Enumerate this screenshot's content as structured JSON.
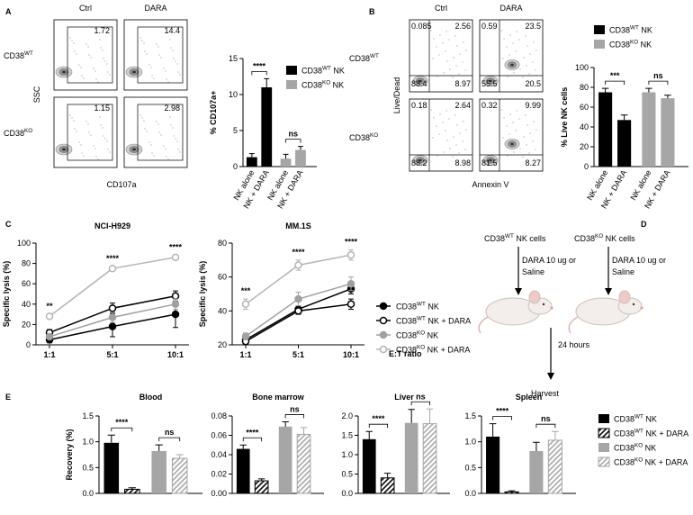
{
  "panel_labels": [
    "A",
    "B",
    "C",
    "D",
    "E"
  ],
  "flow_a": {
    "columns": [
      "Ctrl",
      "DARA"
    ],
    "rows": [
      [
        "CD38",
        "WT"
      ],
      [
        "CD38",
        "KO"
      ]
    ],
    "y_label": "SSC",
    "x_label": "CD107a",
    "gates": [
      [
        1.72,
        14.4
      ],
      [
        1.15,
        2.98
      ]
    ]
  },
  "flow_b": {
    "columns": [
      "Ctrl",
      "DARA"
    ],
    "rows": [
      [
        "CD38",
        "WT"
      ],
      [
        "CD38",
        "KO"
      ]
    ],
    "y_label": "Live/Dead",
    "x_label": "Annexin V",
    "quadrants": [
      [
        [
          0.085,
          2.56,
          88.4,
          8.97
        ],
        [
          0.59,
          23.5,
          55.5,
          20.5
        ]
      ],
      [
        [
          0.18,
          2.64,
          88.2,
          8.98
        ],
        [
          0.32,
          9.99,
          81.5,
          8.27
        ]
      ]
    ]
  },
  "chart_data": [
    {
      "type": "bar",
      "y_label": "% CD107a+",
      "categories": [
        "NK alone",
        "NK + DARA",
        "NK alone",
        "NK + DARA"
      ],
      "ylim": [
        0,
        15
      ],
      "yticks": [
        0,
        5,
        10,
        15
      ],
      "series": [
        {
          "name": [
            "CD38",
            "WT",
            " NK"
          ],
          "color": "#000000",
          "values": [
            1.3,
            11,
            null,
            null
          ],
          "errors": [
            0.5,
            1.2,
            null,
            null
          ]
        },
        {
          "name": [
            "CD38",
            "KO",
            " NK"
          ],
          "color": "#a6a6a6",
          "values": [
            null,
            null,
            1.1,
            2.3
          ],
          "errors": [
            null,
            null,
            0.6,
            0.5
          ]
        }
      ],
      "annotations": [
        "****",
        "ns"
      ]
    },
    {
      "type": "bar",
      "y_label": "% Live NK cells",
      "categories": [
        "NK alone",
        "NK + DARA",
        "NK alone",
        "NK + DARA"
      ],
      "ylim": [
        0,
        100
      ],
      "yticks": [
        0,
        20,
        40,
        60,
        80,
        100
      ],
      "series": [
        {
          "name": [
            "CD38",
            "WT",
            " NK"
          ],
          "color": "#000000",
          "values": [
            75,
            47,
            null,
            null
          ],
          "errors": [
            4,
            5,
            null,
            null
          ]
        },
        {
          "name": [
            "CD38",
            "KO",
            " NK"
          ],
          "color": "#a6a6a6",
          "values": [
            null,
            null,
            75,
            69
          ],
          "errors": [
            null,
            null,
            4,
            3
          ]
        }
      ],
      "annotations": [
        "***",
        "ns"
      ]
    },
    {
      "type": "line",
      "title": "NCI-H929",
      "y_label": "Specific lysis (%)",
      "categories": [
        "1:1",
        "5:1",
        "10:1"
      ],
      "ylim": [
        0,
        100
      ],
      "yticks": [
        0,
        20,
        40,
        60,
        80,
        100
      ],
      "series": [
        {
          "color": "#000000",
          "marker": "filled",
          "values": [
            5,
            18,
            30
          ],
          "errors": [
            3,
            10,
            13
          ]
        },
        {
          "color": "#000000",
          "marker": "open",
          "values": [
            12,
            36,
            48
          ],
          "errors": [
            3,
            5,
            5
          ]
        },
        {
          "color": "#a0a0a0",
          "marker": "filled",
          "values": [
            8,
            27,
            40
          ],
          "errors": [
            2,
            5,
            5
          ]
        },
        {
          "color": "#b4b4b4",
          "marker": "open",
          "values": [
            28,
            75,
            86
          ],
          "errors": [
            2,
            2,
            2
          ]
        }
      ],
      "annotations": [
        "**",
        "****",
        "****"
      ]
    },
    {
      "type": "line",
      "title": "MM.1S",
      "y_label": "Specific lysis (%)",
      "x_label": "E:T ratio",
      "categories": [
        "1:1",
        "5:1",
        "10:1"
      ],
      "ylim": [
        20,
        80
      ],
      "yticks": [
        20,
        40,
        60,
        80
      ],
      "series": [
        {
          "name": [
            "CD38",
            "WT",
            " NK"
          ],
          "color": "#000000",
          "marker": "filled",
          "values": [
            23,
            41,
            53
          ],
          "errors": [
            2,
            2,
            3
          ]
        },
        {
          "name": [
            "CD38",
            "WT",
            " NK + DARA"
          ],
          "color": "#000000",
          "marker": "open",
          "values": [
            22,
            40,
            44
          ],
          "errors": [
            2,
            2,
            3
          ]
        },
        {
          "name": [
            "CD38",
            "KO",
            " NK"
          ],
          "color": "#a0a0a0",
          "marker": "filled",
          "values": [
            25,
            47,
            56
          ],
          "errors": [
            2,
            4,
            4
          ]
        },
        {
          "name": [
            "CD38",
            "KO",
            " NK + DARA"
          ],
          "color": "#b4b4b4",
          "marker": "open",
          "values": [
            44,
            67,
            73
          ],
          "errors": [
            3,
            3,
            3
          ]
        }
      ],
      "annotations": [
        "***",
        "****",
        "****"
      ]
    },
    {
      "type": "bar",
      "title": "Blood",
      "y_label": "Recovery (%)",
      "ylim": [
        0,
        1.5
      ],
      "yticks": [
        {
          "value": 0,
          "label": "0.0"
        },
        0.5,
        {
          "value": 1,
          "label": "1.0"
        },
        1.5
      ],
      "series": [
        {
          "color": "#000000",
          "hatch": false,
          "values": [
            0.98
          ],
          "errors": [
            0.15
          ]
        },
        {
          "color": "#000000",
          "hatch": true,
          "values": [
            0.08
          ],
          "errors": [
            0.03
          ]
        },
        {
          "color": "#a6a6a6",
          "hatch": false,
          "values": [
            0.82
          ],
          "errors": [
            0.12
          ]
        },
        {
          "color": "#a6a6a6",
          "hatch": true,
          "values": [
            0.68
          ],
          "errors": [
            0.07
          ]
        }
      ],
      "annotations": [
        "****",
        "ns"
      ]
    },
    {
      "type": "bar",
      "title": "Bone marrow",
      "ylim": [
        0,
        0.08
      ],
      "yticks": [
        {
          "value": 0,
          "label": "0.00"
        },
        {
          "value": 0.02,
          "label": "0.02"
        },
        {
          "value": 0.04,
          "label": "0.04"
        },
        {
          "value": 0.06,
          "label": "0.06"
        },
        {
          "value": 0.08,
          "label": "0.08"
        }
      ],
      "series": [
        {
          "color": "#000000",
          "hatch": false,
          "values": [
            0.046
          ],
          "errors": [
            0.004
          ]
        },
        {
          "color": "#000000",
          "hatch": true,
          "values": [
            0.013
          ],
          "errors": [
            0.002
          ]
        },
        {
          "color": "#a6a6a6",
          "hatch": false,
          "values": [
            0.069
          ],
          "errors": [
            0.005
          ]
        },
        {
          "color": "#a6a6a6",
          "hatch": true,
          "values": [
            0.061
          ],
          "errors": [
            0.007
          ]
        }
      ],
      "annotations": [
        "****",
        "ns"
      ]
    },
    {
      "type": "bar",
      "title": "Liver",
      "ylim": [
        0,
        2
      ],
      "yticks": [
        {
          "value": 0,
          "label": "0.0"
        },
        0.5,
        {
          "value": 1,
          "label": "1.0"
        },
        1.5,
        {
          "value": 2,
          "label": "2.0"
        }
      ],
      "series": [
        {
          "color": "#000000",
          "hatch": false,
          "values": [
            1.4
          ],
          "errors": [
            0.2
          ]
        },
        {
          "color": "#000000",
          "hatch": true,
          "values": [
            0.4
          ],
          "errors": [
            0.12
          ]
        },
        {
          "color": "#a6a6a6",
          "hatch": false,
          "values": [
            1.82
          ],
          "errors": [
            0.35
          ]
        },
        {
          "color": "#a6a6a6",
          "hatch": true,
          "values": [
            1.8
          ],
          "errors": [
            0.38
          ]
        }
      ],
      "annotations": [
        "****",
        "ns"
      ]
    },
    {
      "type": "bar",
      "title": "Spleen",
      "ylim": [
        0,
        1.5
      ],
      "yticks": [
        {
          "value": 0,
          "label": "0.0"
        },
        0.5,
        {
          "value": 1,
          "label": "1.0"
        },
        1.5
      ],
      "series": [
        {
          "name": [
            "CD38",
            "WT",
            " NK"
          ],
          "color": "#000000",
          "hatch": false,
          "values": [
            1.1
          ],
          "errors": [
            0.25
          ]
        },
        {
          "name": [
            "CD38",
            "WT",
            " NK + DARA"
          ],
          "color": "#000000",
          "hatch": true,
          "values": [
            0.03
          ],
          "errors": [
            0.02
          ]
        },
        {
          "name": [
            "CD38",
            "KO",
            " NK"
          ],
          "color": "#a6a6a6",
          "hatch": false,
          "values": [
            0.82
          ],
          "errors": [
            0.17
          ]
        },
        {
          "name": [
            "CD38",
            "KO",
            " NK + DARA"
          ],
          "color": "#a6a6a6",
          "hatch": true,
          "values": [
            1.03
          ],
          "errors": [
            0.17
          ]
        }
      ],
      "annotations": [
        "****",
        "ns"
      ]
    }
  ],
  "diagram": {
    "groups": [
      {
        "cells": [
          "CD38",
          "WT",
          " NK cells"
        ],
        "treatment": [
          "DARA 10 ug or",
          "Saline"
        ]
      },
      {
        "cells": [
          "CD38",
          "KO",
          " NK cells"
        ],
        "treatment": [
          "DARA 10 ug or",
          "Saline"
        ]
      }
    ],
    "timepoint": "24 hours",
    "endpoint": "Harvest"
  }
}
